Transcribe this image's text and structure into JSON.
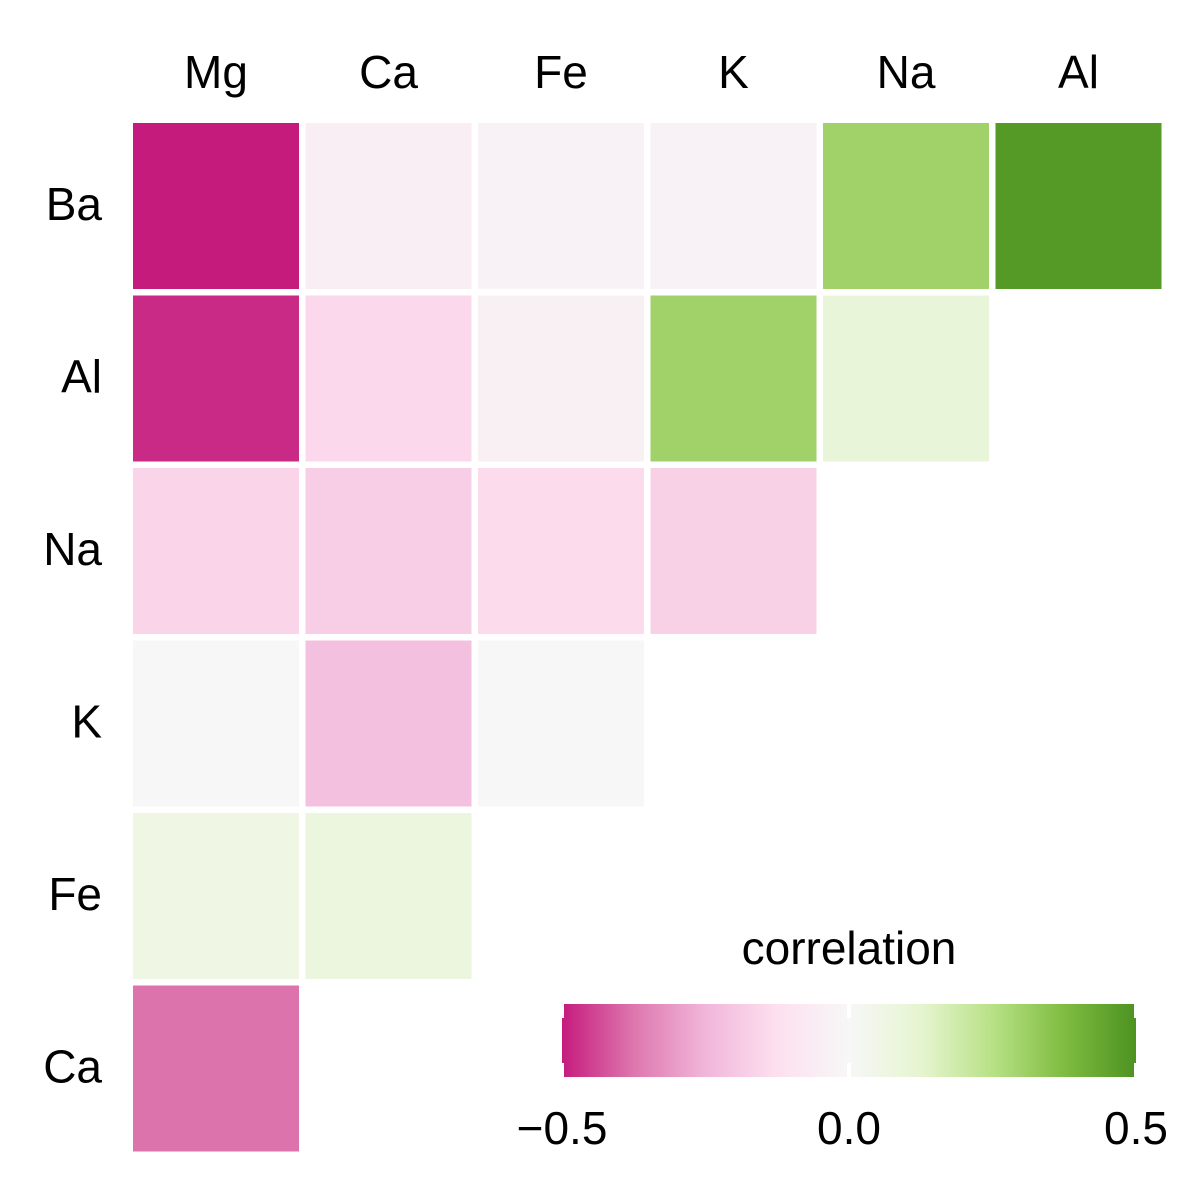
{
  "chart_data": {
    "type": "heatmap",
    "x_categories": [
      "Mg",
      "Ca",
      "Fe",
      "K",
      "Na",
      "Al"
    ],
    "y_categories": [
      "Ba",
      "Al",
      "Na",
      "K",
      "Fe",
      "Ca"
    ],
    "values": [
      [
        -0.51,
        -0.05,
        -0.03,
        -0.03,
        0.3,
        0.48
      ],
      [
        -0.48,
        -0.15,
        -0.04,
        0.3,
        0.1,
        null
      ],
      [
        -0.16,
        -0.18,
        -0.14,
        -0.17,
        null,
        null
      ],
      [
        0.0,
        -0.22,
        0.0,
        null,
        null,
        null
      ],
      [
        0.06,
        0.08,
        null,
        null,
        null,
        null
      ],
      [
        -0.38,
        null,
        null,
        null,
        null,
        null
      ]
    ],
    "colorbar_title": "correlation",
    "colorlim": [
      -0.5,
      0.5
    ],
    "colorticks": [
      {
        "value": -0.5,
        "label": "−0.5"
      },
      {
        "value": 0,
        "label": "0.0"
      },
      0.5
    ],
    "colormap": [
      "#c51b7d",
      "#de77ae",
      "#f1b6da",
      "#fde0ef",
      "#f7f7f7",
      "#e6f5d0",
      "#b8e186",
      "#7fbc41",
      "#4d9221"
    ]
  }
}
